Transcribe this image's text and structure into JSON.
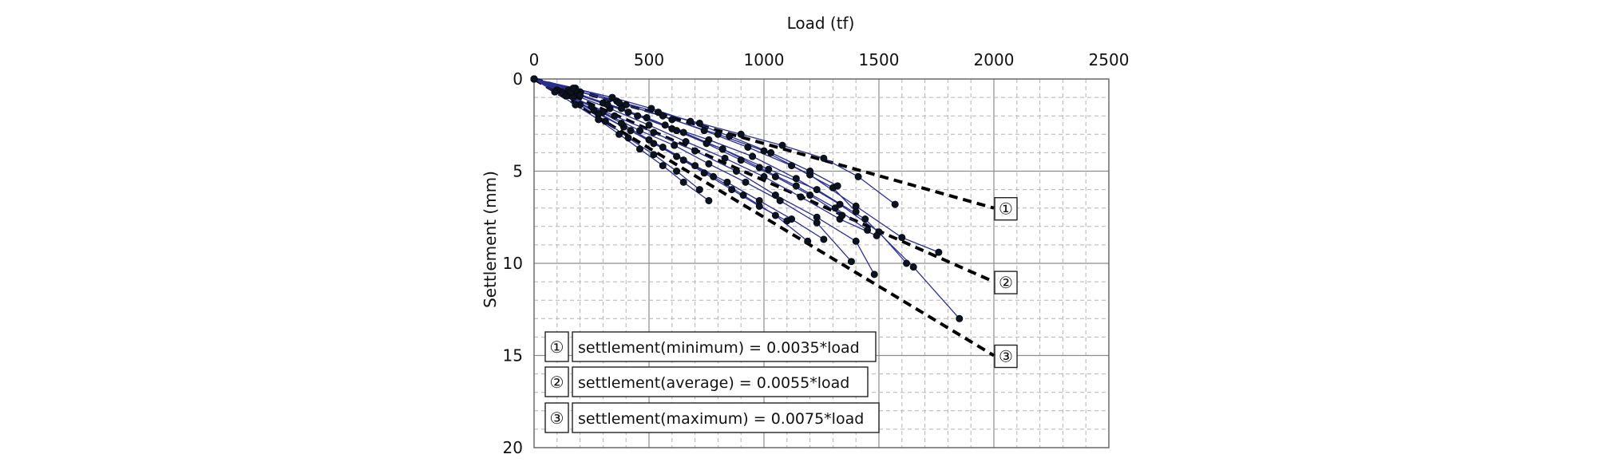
{
  "chart_data": {
    "type": "scatter",
    "xlabel": "Load (tf)",
    "ylabel": "Settlement (mm)",
    "xlim": [
      0,
      2500
    ],
    "ylim": [
      0,
      20
    ],
    "x_ticks": [
      "0",
      "500",
      "1000",
      "1500",
      "2000",
      "2500"
    ],
    "y_ticks": [
      "0",
      "5",
      "10",
      "15",
      "20"
    ],
    "y_inverted": true,
    "x_axis_position": "top",
    "grid": true,
    "colors": {
      "curves": "#2b2f8f",
      "points": "#0b1320",
      "trend": "#000000"
    },
    "trend_lines": [
      {
        "marker": "①",
        "label": "settlement(minimum)",
        "equation": "= 0.0035*load",
        "slope": 0.0035,
        "x": [
          0,
          2000
        ]
      },
      {
        "marker": "②",
        "label": "settlement(average)",
        "equation": "= 0.0055*load",
        "slope": 0.0055,
        "x": [
          0,
          2000
        ]
      },
      {
        "marker": "③",
        "label": "settlement(maximum)",
        "equation": "= 0.0075*load",
        "slope": 0.0075,
        "x": [
          0,
          2000
        ]
      }
    ],
    "series": [
      {
        "x": [
          0,
          180,
          360,
          540,
          720,
          900,
          1080,
          1260,
          1410,
          1570
        ],
        "y": [
          0,
          0.5,
          1.2,
          1.8,
          2.4,
          3.0,
          3.6,
          4.3,
          5.3,
          6.8
        ]
      },
      {
        "x": [
          0,
          200,
          400,
          600,
          800,
          1000,
          1200,
          1400,
          1600,
          1760
        ],
        "y": [
          0,
          0.7,
          1.4,
          2.2,
          3.0,
          3.9,
          5.2,
          6.9,
          8.6,
          9.4
        ]
      },
      {
        "x": [
          0,
          190,
          380,
          570,
          760,
          950,
          1140,
          1330,
          1500,
          1620
        ],
        "y": [
          0,
          0.8,
          1.6,
          2.5,
          3.3,
          4.2,
          5.4,
          6.8,
          8.3,
          10.0
        ]
      },
      {
        "x": [
          0,
          160,
          330,
          500,
          660,
          830,
          1000,
          1160,
          1330,
          1490
        ],
        "y": [
          0,
          0.8,
          1.6,
          2.5,
          3.4,
          4.3,
          5.3,
          6.4,
          7.6,
          8.5
        ]
      },
      {
        "x": [
          0,
          170,
          350,
          520,
          700,
          880,
          1050,
          1230,
          1400,
          1480
        ],
        "y": [
          0,
          1.0,
          2.0,
          2.9,
          3.9,
          5.0,
          6.3,
          7.5,
          8.8,
          10.6
        ]
      },
      {
        "x": [
          0,
          150,
          300,
          460,
          610,
          760,
          920,
          1070,
          1230,
          1380
        ],
        "y": [
          0,
          0.9,
          1.8,
          2.8,
          3.6,
          4.6,
          5.6,
          6.6,
          7.8,
          9.9
        ]
      },
      {
        "x": [
          0,
          140,
          280,
          420,
          560,
          700,
          840,
          980,
          1120,
          1260
        ],
        "y": [
          0,
          0.9,
          1.9,
          2.8,
          3.7,
          4.7,
          5.6,
          6.6,
          7.6,
          8.7
        ]
      },
      {
        "x": [
          0,
          200,
          410,
          620,
          820,
          1020,
          1230,
          1440,
          1650,
          1850
        ],
        "y": [
          0,
          0.9,
          1.8,
          2.8,
          3.8,
          4.9,
          6.0,
          7.6,
          10.2,
          13.0
        ]
      },
      {
        "x": [
          0,
          130,
          260,
          390,
          520,
          650,
          780,
          910,
          1050,
          1190
        ],
        "y": [
          0,
          0.8,
          1.7,
          2.6,
          3.5,
          4.4,
          5.3,
          6.3,
          7.4,
          8.8
        ]
      },
      {
        "x": [
          0,
          180,
          370,
          560,
          740,
          930,
          1120,
          1300,
          1400
        ],
        "y": [
          0,
          0.6,
          1.3,
          2.0,
          2.8,
          3.7,
          4.7,
          5.9,
          7.2
        ]
      },
      {
        "x": [
          0,
          150,
          300,
          450,
          600,
          750,
          900,
          1050,
          1200,
          1340
        ],
        "y": [
          0,
          0.6,
          1.3,
          2.0,
          2.7,
          3.5,
          4.4,
          5.3,
          6.3,
          7.4
        ]
      },
      {
        "x": [
          0,
          120,
          250,
          380,
          500,
          620,
          740,
          860,
          980,
          1100
        ],
        "y": [
          0,
          0.7,
          1.5,
          2.4,
          3.3,
          4.2,
          5.1,
          6.0,
          6.9,
          7.7
        ]
      },
      {
        "x": [
          0,
          100,
          200,
          310,
          410,
          520,
          620,
          720
        ],
        "y": [
          0,
          0.6,
          1.4,
          2.3,
          3.2,
          4.1,
          5.0,
          6.0
        ]
      },
      {
        "x": [
          0,
          90,
          180,
          280,
          370,
          460,
          560,
          650,
          760
        ],
        "y": [
          0,
          0.7,
          1.4,
          2.2,
          3.0,
          3.8,
          4.7,
          5.6,
          6.6
        ]
      },
      {
        "x": [
          0,
          160,
          320,
          490,
          650,
          820,
          980,
          1140,
          1310,
          1450
        ],
        "y": [
          0,
          0.7,
          1.4,
          2.1,
          2.9,
          3.8,
          4.8,
          5.8,
          7.0,
          8.2
        ]
      },
      {
        "x": [
          0,
          170,
          340,
          510,
          680,
          850,
          1030,
          1200,
          1320
        ],
        "y": [
          0,
          0.5,
          1.0,
          1.6,
          2.3,
          3.1,
          4.0,
          5.0,
          5.8
        ]
      }
    ]
  }
}
